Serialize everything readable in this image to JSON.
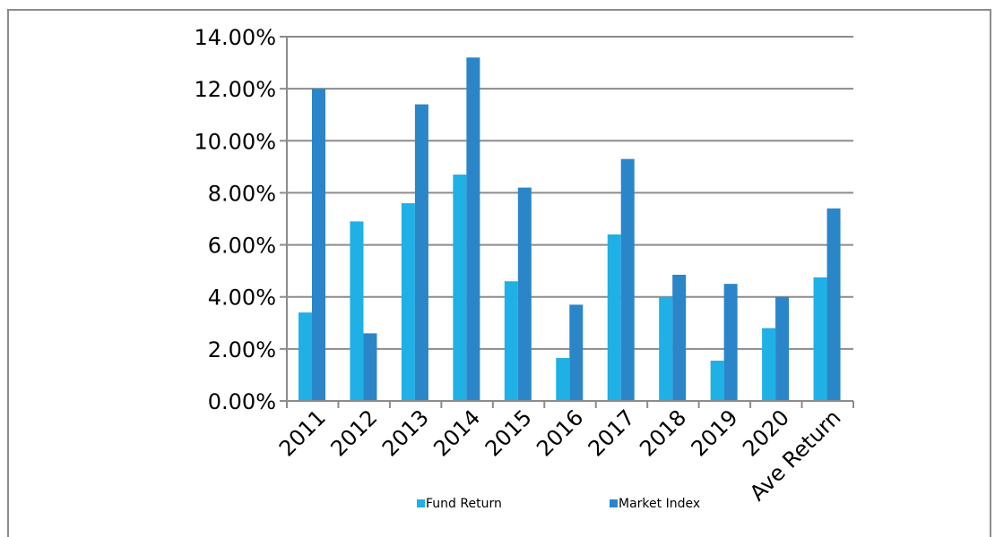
{
  "chart_data": {
    "type": "bar",
    "title": "",
    "xlabel": "",
    "ylabel": "",
    "categories": [
      "2011",
      "2012",
      "2013",
      "2014",
      "2015",
      "2016",
      "2017",
      "2018",
      "2019",
      "2020",
      "Ave Return"
    ],
    "series": [
      {
        "name": "Fund Return",
        "color": "#1fb0e6",
        "values": [
          3.4,
          6.9,
          7.6,
          8.7,
          4.6,
          1.65,
          6.4,
          4.0,
          1.55,
          2.8,
          4.75
        ]
      },
      {
        "name": "Market Index",
        "color": "#2a86c8",
        "values": [
          12.0,
          2.6,
          11.4,
          13.2,
          8.2,
          3.7,
          9.3,
          4.85,
          4.5,
          4.0,
          7.4
        ]
      }
    ],
    "ylim": [
      0,
      14
    ],
    "yticks": [
      "0.00%",
      "2.00%",
      "4.00%",
      "6.00%",
      "8.00%",
      "10.00%",
      "12.00%",
      "14.00%"
    ],
    "ytick_values": [
      0,
      2,
      4,
      6,
      8,
      10,
      12,
      14
    ],
    "grid": true,
    "legend_position": "bottom"
  }
}
